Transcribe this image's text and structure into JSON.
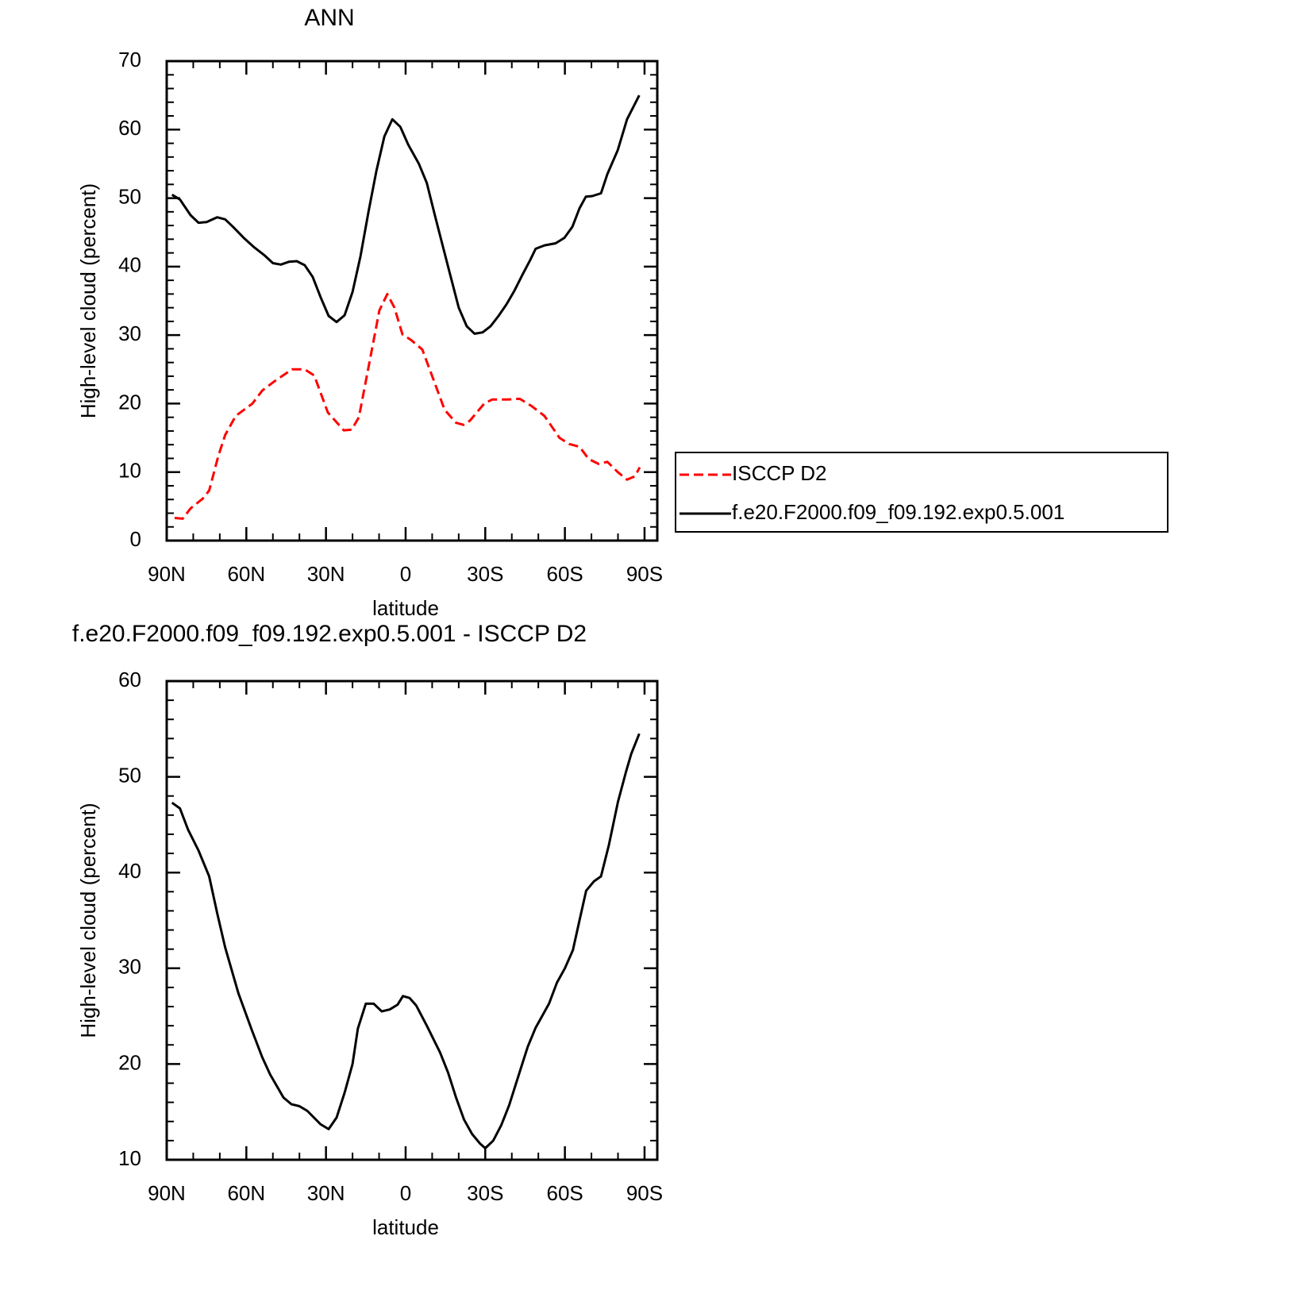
{
  "chart_data": [
    {
      "type": "line",
      "title": "ANN",
      "xlabel": "latitude",
      "ylabel": "High-level cloud (percent)",
      "xlim": [
        90,
        -94.8
      ],
      "ylim": [
        0,
        70
      ],
      "xticks": [
        {
          "value": 90,
          "label": "90N"
        },
        {
          "value": 60,
          "label": "60N"
        },
        {
          "value": 30,
          "label": "30N"
        },
        0,
        {
          "value": -30,
          "label": "30S"
        },
        {
          "value": -60,
          "label": "60S"
        },
        {
          "value": -90,
          "label": "90S"
        }
      ],
      "yticks": [
        0,
        10,
        20,
        30,
        40,
        50,
        60,
        70
      ],
      "legend": "right",
      "series": [
        {
          "name": "ISCCP D2",
          "color": "#ff0000",
          "linestyle": "dashed",
          "x": [
            87,
            84,
            81,
            76.5,
            74,
            70.6,
            68,
            64,
            57.7,
            54,
            49.6,
            42.8,
            38,
            34.4,
            29.3,
            23.3,
            20.3,
            17.6,
            13.4,
            9.9,
            6.9,
            4.2,
            1.2,
            -2,
            -6.3,
            -10.2,
            -14.7,
            -19,
            -21.8,
            -24.2,
            -29.6,
            -32.6,
            -38.6,
            -43,
            -47.6,
            -52.3,
            -58,
            -61.6,
            -65.5,
            -69,
            -72.7,
            -76,
            -79.9,
            -83.4,
            -86.4,
            -88.2
          ],
          "values": [
            3.3,
            3.2,
            4.7,
            6.1,
            7.3,
            12.3,
            15.4,
            18.2,
            20,
            21.9,
            23.2,
            25,
            25,
            24.1,
            18.7,
            16.1,
            16.2,
            18,
            26.5,
            33.6,
            36,
            34,
            30.1,
            29.3,
            27.9,
            23.8,
            19.1,
            17.2,
            16.9,
            17.5,
            20,
            20.6,
            20.6,
            20.7,
            19.6,
            18.2,
            15,
            14.1,
            13.7,
            11.9,
            11.2,
            11.5,
            10,
            8.9,
            9.4,
            10.7
          ]
        },
        {
          "name": "f.e20.F2000.f09_f09.192.exp0.5.001",
          "color": "#000000",
          "linestyle": "solid",
          "x": [
            88,
            85,
            81,
            78,
            75,
            71,
            68,
            65,
            61,
            57,
            53,
            50,
            47,
            44,
            41,
            38,
            35,
            32,
            29,
            26,
            23,
            20,
            17,
            14,
            11,
            8,
            5,
            2,
            -1,
            -5,
            -8,
            -11,
            -14,
            -17,
            -20,
            -23,
            -26,
            -29,
            -32,
            -35,
            -38,
            -41,
            -44,
            -47,
            -49,
            -52.3,
            -56.5,
            -59.8,
            -62.8,
            -65.5,
            -67.9,
            -70.3,
            -73.6,
            -76,
            -79.9,
            -83.4,
            -88
          ],
          "values": [
            50.5,
            49.8,
            47.5,
            46.4,
            46.5,
            47.2,
            46.9,
            45.8,
            44.2,
            42.8,
            41.6,
            40.5,
            40.3,
            40.7,
            40.8,
            40.2,
            38.5,
            35.5,
            32.8,
            31.9,
            32.9,
            36.3,
            41.5,
            48,
            54,
            59,
            61.5,
            60.4,
            57.8,
            55,
            52.2,
            47.5,
            43,
            38.5,
            34,
            31.3,
            30.2,
            30.4,
            31.3,
            32.8,
            34.5,
            36.5,
            38.8,
            41,
            42.6,
            43.1,
            43.4,
            44.2,
            45.8,
            48.5,
            50.2,
            50.3,
            50.7,
            53.5,
            57,
            61.5,
            65
          ]
        }
      ]
    },
    {
      "type": "line",
      "title": "f.e20.F2000.f09_f09.192.exp0.5.001 - ISCCP D2",
      "xlabel": "latitude",
      "ylabel": "High-level cloud (percent)",
      "xlim": [
        90,
        -94.8
      ],
      "ylim": [
        10,
        60
      ],
      "xticks": [
        {
          "value": 90,
          "label": "90N"
        },
        {
          "value": 60,
          "label": "60N"
        },
        {
          "value": 30,
          "label": "30N"
        },
        0,
        {
          "value": -30,
          "label": "30S"
        },
        {
          "value": -60,
          "label": "60S"
        },
        {
          "value": -90,
          "label": "90S"
        }
      ],
      "yticks": [
        10,
        20,
        30,
        40,
        50,
        60
      ],
      "series": [
        {
          "color": "#000000",
          "linestyle": "solid",
          "x": [
            88,
            85,
            82,
            78,
            74,
            71,
            68,
            63,
            58,
            54,
            51,
            46,
            43,
            40,
            37,
            32,
            29,
            26,
            23,
            20,
            18,
            15,
            12,
            9,
            6,
            3,
            1,
            -1.5,
            -4,
            -8,
            -13,
            -16,
            -19,
            -22,
            -25,
            -28,
            -30,
            -33,
            -36,
            -39,
            -43,
            -46,
            -49,
            -54,
            -57,
            -60,
            -63,
            -65.5,
            -68,
            -71,
            -73.6,
            -76.6,
            -80,
            -83,
            -85,
            -88
          ],
          "values": [
            47.3,
            46.7,
            44.5,
            42.3,
            39.6,
            35.8,
            32.2,
            27.4,
            23.6,
            20.7,
            18.9,
            16.5,
            15.8,
            15.6,
            15.1,
            13.7,
            13.2,
            14.4,
            17,
            20,
            23.7,
            26.3,
            26.3,
            25.5,
            25.7,
            26.2,
            27.1,
            26.9,
            26.1,
            24,
            21.2,
            19.1,
            16.5,
            14.2,
            12.7,
            11.7,
            11.2,
            12,
            13.6,
            15.7,
            19.2,
            21.8,
            23.8,
            26.3,
            28.5,
            30,
            31.9,
            35,
            38.1,
            39.1,
            39.6,
            42.9,
            47.4,
            50.5,
            52.4,
            54.5
          ]
        }
      ]
    }
  ]
}
